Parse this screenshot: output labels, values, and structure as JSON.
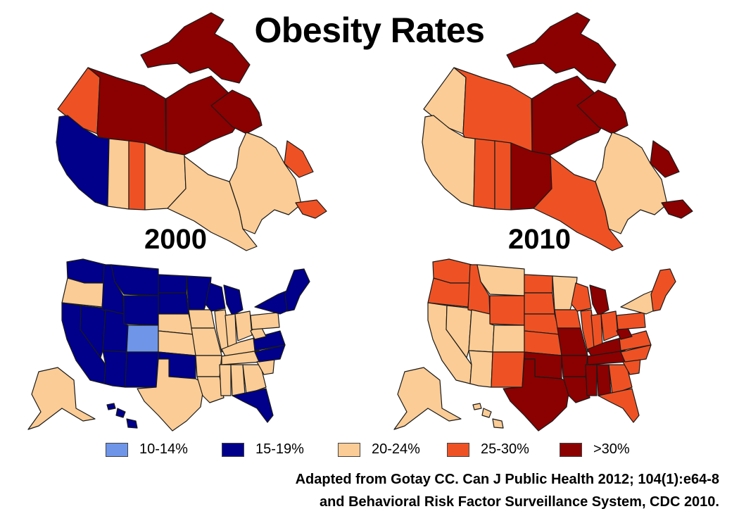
{
  "title": "Obesity Rates",
  "years": [
    "2000",
    "2010"
  ],
  "colors": {
    "c10_14": "#6e95e8",
    "c15_19": "#00008b",
    "c20_24": "#fbcc95",
    "c25_30": "#ee5224",
    "c30plus": "#8b0000"
  },
  "legend": [
    {
      "label": "10-14%",
      "color": "#6e95e8"
    },
    {
      "label": "15-19%",
      "color": "#00008b"
    },
    {
      "label": "20-24%",
      "color": "#fbcc95"
    },
    {
      "label": "25-30%",
      "color": "#ee5224"
    },
    {
      "label": ">30%",
      "color": "#8b0000"
    }
  ],
  "credit": {
    "line1": "Adapted from Gotay CC. Can J Public Health 2012; 104(1):e64-8",
    "line2": "and Behavioral Risk Factor Surveillance System, CDC 2010."
  }
}
